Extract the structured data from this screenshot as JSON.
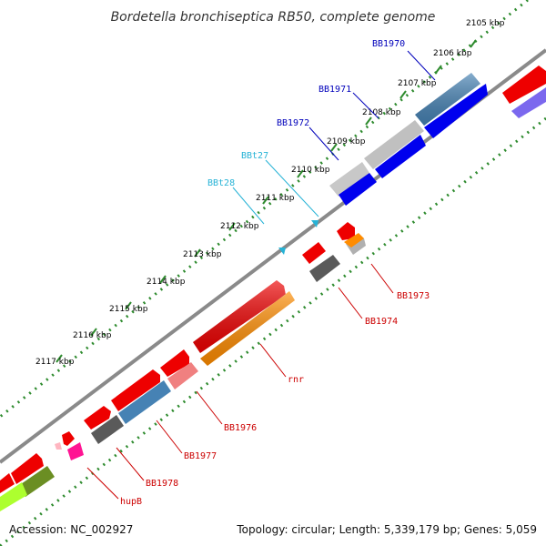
{
  "title": "Bordetella bronchiseptica RB50, complete genome",
  "footer": {
    "accession": "Accession: NC_002927",
    "summary": "Topology: circular; Length: 5,339,179 bp; Genes: 5,059"
  },
  "ticks": [
    "2105 kbp",
    "2106 kbp",
    "2107 kbp",
    "2108 kbp",
    "2109 kbp",
    "2110 kbp",
    "2111 kbp",
    "2112 kbp",
    "2113 kbp",
    "2114 kbp",
    "2115 kbp",
    "2116 kbp",
    "2117 kbp"
  ],
  "genes_above": [
    "BB1970",
    "BB1971",
    "BB1972",
    "BBt27",
    "BBt28"
  ],
  "genes_below": [
    "BB1973",
    "BB1974",
    "rnr",
    "BB1976",
    "BB1977",
    "BB1978",
    "hupB"
  ],
  "colors": {
    "backbone": "#7a7a7a",
    "tick_green": "#2e8b2e",
    "label_blue": "#0000bb",
    "label_cyan": "#27b3d6",
    "label_red": "#cc0000",
    "red": "#ee0000",
    "blue": "#0000ee",
    "steel": "#4682b4",
    "gray": "#b8b8b8",
    "darkgray": "#5a5a5a",
    "orange": "#ff8c00",
    "pink": "#f08080",
    "magenta": "#ff1493",
    "olive": "#6b8e23",
    "lime": "#adff2f",
    "purple": "#7b68ee"
  }
}
